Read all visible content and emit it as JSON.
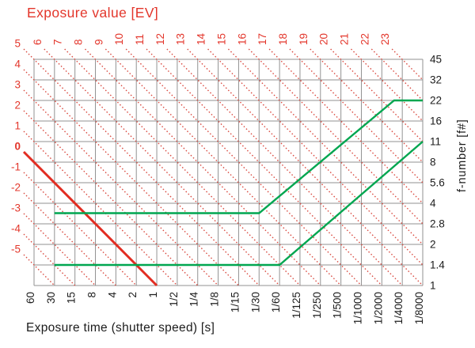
{
  "chart_data": {
    "type": "line",
    "title": "Exposure value [EV]",
    "xlabel": "Exposure time (shutter speed) [s]",
    "ylabel_right": "f-number [f#]",
    "x_tick_labels": [
      "60",
      "30",
      "15",
      "8",
      "4",
      "2",
      "1",
      "1/2",
      "1/4",
      "1/8",
      "1/15",
      "1/30",
      "1/60",
      "1/125",
      "1/250",
      "1/500",
      "1/1000",
      "1/2000",
      "1/4000",
      "1/8000"
    ],
    "y_tick_labels_right": [
      "45",
      "32",
      "22",
      "16",
      "11",
      "8",
      "5.6",
      "4",
      "2.8",
      "2",
      "1.4",
      "1"
    ],
    "ev_top_tick_labels": [
      "6",
      "7",
      "8",
      "9",
      "10",
      "11",
      "12",
      "13",
      "14",
      "15",
      "16",
      "17",
      "18",
      "19",
      "20",
      "21",
      "22",
      "23"
    ],
    "ev_left_tick_labels": [
      "5",
      "4",
      "3",
      "2",
      "1",
      "0",
      "-1",
      "-2",
      "-3",
      "-4",
      "-5"
    ],
    "ev_isolines": {
      "min": -5,
      "max": 23,
      "rule": "EV = column - row + 5 on the one-stop grid",
      "style": "dotted"
    },
    "highlight_ev": 0,
    "highlight_ev_line_readable": [
      [
        "60 s",
        "f/8"
      ],
      [
        "1 s",
        "f/1"
      ]
    ],
    "grid": {
      "columns": 19,
      "rows": 11,
      "on": true
    },
    "series": [
      {
        "name": "program-line-upper",
        "description": "program exposure line, max aperture f/3.4, stops down to f/22",
        "color": "#00a650",
        "points_col_row": [
          [
            1,
            7.48
          ],
          [
            11,
            7.48
          ],
          [
            17.6,
            2
          ],
          [
            19,
            2
          ]
        ],
        "points_readable": [
          [
            "30 s",
            "f/3.4"
          ],
          [
            "1/30 s",
            "f/3.4"
          ],
          [
            "~1/3000 s",
            "f/22"
          ],
          [
            "1/8000 s",
            "f/22"
          ]
        ]
      },
      {
        "name": "program-line-lower",
        "description": "program exposure line, max aperture f/1.4, rises to f/11",
        "color": "#00a650",
        "points_col_row": [
          [
            1,
            10
          ],
          [
            12,
            10
          ],
          [
            19,
            4
          ]
        ],
        "points_readable": [
          [
            "30 s",
            "f/1.4"
          ],
          [
            "1/60 s",
            "f/1.4"
          ],
          [
            "1/8000 s",
            "f/11"
          ]
        ]
      }
    ],
    "colors": {
      "red_label": "#e3362b",
      "red_isoline": "#d9493f",
      "red_highlight_line": "#e22d22",
      "green_series": "#00a650",
      "grid_gray": "#929292",
      "text_black": "#1c1c1c",
      "background": "#ffffff"
    }
  }
}
